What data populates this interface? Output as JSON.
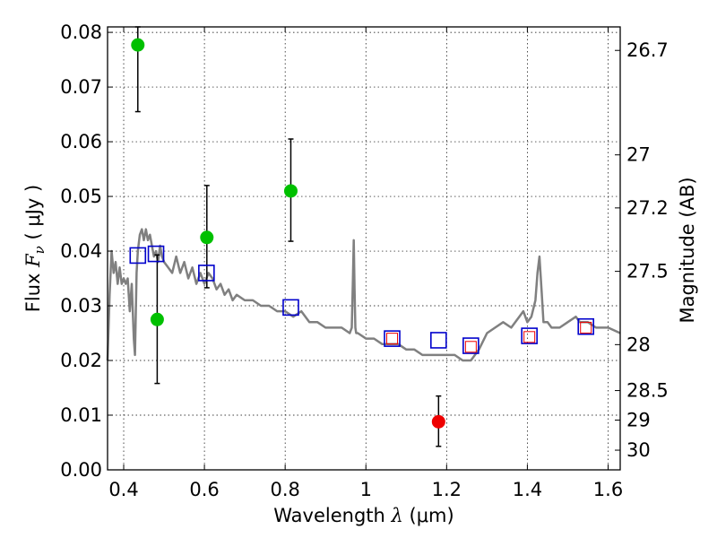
{
  "chart_data": {
    "type": "scatter",
    "xlabel": {
      "prefix": "Wavelength  ",
      "symbol": "λ",
      "unit": " (μm)"
    },
    "ylabel": {
      "prefix": "Flux  ",
      "symbol": "F",
      "subscript": "ν",
      "unit": "  ( μJy )"
    },
    "y2label": "Magnitude (AB)",
    "xlim": [
      0.36,
      1.63
    ],
    "ylim": [
      0.0,
      0.081
    ],
    "grid": true,
    "xticks": [
      {
        "value": 0.4,
        "label": "0.4"
      },
      {
        "value": 0.6,
        "label": "0.6"
      },
      {
        "value": 0.8,
        "label": "0.8"
      },
      {
        "value": 1.0,
        "label": "1"
      },
      {
        "value": 1.2,
        "label": "1.2"
      },
      {
        "value": 1.4,
        "label": "1.4"
      },
      {
        "value": 1.6,
        "label": "1.6"
      }
    ],
    "yticks": [
      {
        "value": 0.0,
        "label": "0.00"
      },
      {
        "value": 0.01,
        "label": "0.01"
      },
      {
        "value": 0.02,
        "label": "0.02"
      },
      {
        "value": 0.03,
        "label": "0.03"
      },
      {
        "value": 0.04,
        "label": "0.04"
      },
      {
        "value": 0.05,
        "label": "0.05"
      },
      {
        "value": 0.06,
        "label": "0.06"
      },
      {
        "value": 0.07,
        "label": "0.07"
      },
      {
        "value": 0.08,
        "label": "0.08"
      }
    ],
    "magnitude_ticks": [
      {
        "label": "26.7",
        "flux": 0.0767
      },
      {
        "label": "27",
        "flux": 0.0576
      },
      {
        "label": "27.2",
        "flux": 0.0479
      },
      {
        "label": "27.5",
        "flux": 0.0363
      },
      {
        "label": "28",
        "flux": 0.0229
      },
      {
        "label": "28.5",
        "flux": 0.0145
      },
      {
        "label": "29",
        "flux": 0.0091
      },
      {
        "label": "30",
        "flux": 0.0036
      }
    ],
    "series": [
      {
        "kind": "points",
        "color": "#00c000",
        "points": [
          {
            "x": 0.435,
            "y": 0.0777,
            "err_low": 0.0655,
            "err_high": 0.081
          },
          {
            "x": 0.483,
            "y": 0.0275,
            "err_low": 0.0158,
            "err_high": 0.0393
          },
          {
            "x": 0.606,
            "y": 0.0425,
            "err_low": 0.0333,
            "err_high": 0.052
          },
          {
            "x": 0.814,
            "y": 0.051,
            "err_low": 0.0418,
            "err_high": 0.0605
          }
        ]
      },
      {
        "kind": "points",
        "color": "#ee0000",
        "points": [
          {
            "x": 1.18,
            "y": 0.0088,
            "err_low": 0.0043,
            "err_high": 0.0135
          }
        ]
      },
      {
        "kind": "model_photometry",
        "color": "#0000cc",
        "points": [
          {
            "x": 0.435,
            "y": 0.0392
          },
          {
            "x": 0.48,
            "y": 0.0395
          },
          {
            "x": 0.605,
            "y": 0.036
          },
          {
            "x": 0.814,
            "y": 0.0297
          },
          {
            "x": 1.065,
            "y": 0.024
          },
          {
            "x": 1.18,
            "y": 0.0237
          },
          {
            "x": 1.26,
            "y": 0.0227
          },
          {
            "x": 1.405,
            "y": 0.0245
          },
          {
            "x": 1.545,
            "y": 0.0262
          }
        ]
      },
      {
        "kind": "observed_photometry",
        "color": "#ee0000",
        "points": [
          {
            "x": 1.065,
            "y": 0.024
          },
          {
            "x": 1.26,
            "y": 0.0225
          },
          {
            "x": 1.405,
            "y": 0.0243
          },
          {
            "x": 1.545,
            "y": 0.026
          }
        ]
      },
      {
        "kind": "spectrum",
        "color": "#808080",
        "x": [
          0.36,
          0.365,
          0.37,
          0.375,
          0.38,
          0.385,
          0.39,
          0.395,
          0.4,
          0.405,
          0.41,
          0.415,
          0.42,
          0.425,
          0.428,
          0.432,
          0.435,
          0.44,
          0.445,
          0.45,
          0.455,
          0.46,
          0.465,
          0.47,
          0.475,
          0.48,
          0.485,
          0.49,
          0.495,
          0.5,
          0.51,
          0.52,
          0.53,
          0.54,
          0.55,
          0.56,
          0.57,
          0.58,
          0.59,
          0.6,
          0.61,
          0.62,
          0.63,
          0.64,
          0.65,
          0.66,
          0.67,
          0.68,
          0.7,
          0.72,
          0.74,
          0.76,
          0.78,
          0.8,
          0.82,
          0.84,
          0.86,
          0.88,
          0.9,
          0.92,
          0.94,
          0.96,
          0.965,
          0.968,
          0.97,
          0.972,
          0.974,
          0.976,
          0.98,
          1.0,
          1.02,
          1.04,
          1.06,
          1.08,
          1.1,
          1.12,
          1.14,
          1.16,
          1.18,
          1.2,
          1.22,
          1.24,
          1.26,
          1.27,
          1.28,
          1.3,
          1.32,
          1.34,
          1.36,
          1.38,
          1.39,
          1.4,
          1.41,
          1.42,
          1.425,
          1.43,
          1.435,
          1.44,
          1.45,
          1.46,
          1.48,
          1.5,
          1.52,
          1.53,
          1.55,
          1.57,
          1.6,
          1.63
        ],
        "y": [
          0.02,
          0.032,
          0.04,
          0.036,
          0.038,
          0.034,
          0.037,
          0.034,
          0.035,
          0.034,
          0.035,
          0.029,
          0.034,
          0.024,
          0.021,
          0.036,
          0.04,
          0.043,
          0.044,
          0.042,
          0.044,
          0.042,
          0.043,
          0.041,
          0.039,
          0.04,
          0.038,
          0.041,
          0.039,
          0.038,
          0.037,
          0.036,
          0.039,
          0.036,
          0.038,
          0.035,
          0.037,
          0.034,
          0.036,
          0.034,
          0.036,
          0.035,
          0.033,
          0.034,
          0.032,
          0.033,
          0.031,
          0.032,
          0.031,
          0.031,
          0.03,
          0.03,
          0.029,
          0.029,
          0.028,
          0.029,
          0.027,
          0.027,
          0.026,
          0.026,
          0.026,
          0.025,
          0.026,
          0.035,
          0.042,
          0.033,
          0.026,
          0.025,
          0.025,
          0.024,
          0.024,
          0.023,
          0.023,
          0.023,
          0.022,
          0.022,
          0.021,
          0.021,
          0.021,
          0.021,
          0.021,
          0.02,
          0.02,
          0.021,
          0.022,
          0.025,
          0.026,
          0.027,
          0.026,
          0.028,
          0.029,
          0.027,
          0.028,
          0.031,
          0.036,
          0.039,
          0.033,
          0.027,
          0.027,
          0.026,
          0.026,
          0.027,
          0.028,
          0.027,
          0.027,
          0.026,
          0.026,
          0.025
        ]
      }
    ]
  }
}
